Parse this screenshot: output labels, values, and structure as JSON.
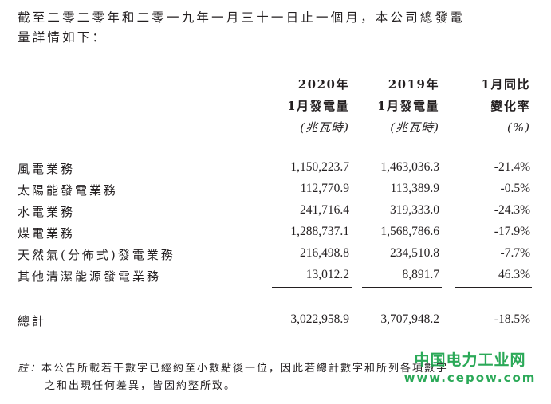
{
  "intro": {
    "line1": "截至二零二零年和二零一九年一月三十一日止一個月，本公司總發電",
    "line2": "量詳情如下："
  },
  "header": {
    "col1": {
      "year": "2020年",
      "metric": "1月發電量",
      "unit": "(兆瓦時)"
    },
    "col2": {
      "year": "2019年",
      "metric": "1月發電量",
      "unit": "(兆瓦時)"
    },
    "col3": {
      "year": "1月同比",
      "metric": "變化率",
      "unit": "(%)"
    }
  },
  "rows": [
    {
      "label": "風電業務",
      "v2020": "1,150,223.7",
      "v2019": "1,463,036.3",
      "change": "-21.4%"
    },
    {
      "label": "太陽能發電業務",
      "v2020": "112,770.9",
      "v2019": "113,389.9",
      "change": "-0.5%"
    },
    {
      "label": "水電業務",
      "v2020": "241,716.4",
      "v2019": "319,333.0",
      "change": "-24.3%"
    },
    {
      "label": "煤電業務",
      "v2020": "1,288,737.1",
      "v2019": "1,568,786.6",
      "change": "-17.9%"
    },
    {
      "label": "天然氣(分佈式)發電業務",
      "v2020": "216,498.8",
      "v2019": "234,510.8",
      "change": "-7.7%"
    },
    {
      "label": "其他清潔能源發電業務",
      "v2020": "13,012.2",
      "v2019": "8,891.7",
      "change": "46.3%"
    }
  ],
  "total": {
    "label": "總計",
    "v2020": "3,022,958.9",
    "v2019": "3,707,948.2",
    "change": "-18.5%"
  },
  "note": {
    "head": "註：",
    "line1": "本公告所載若干數字已經約至小數點後一位，因此若總計數字和所列各項數字",
    "line2": "之和出現任何差異，皆因約整所致。"
  },
  "watermark": {
    "cn": "中国电力工业网",
    "url": "www.cepow.com",
    "color": "#1aa24a"
  }
}
